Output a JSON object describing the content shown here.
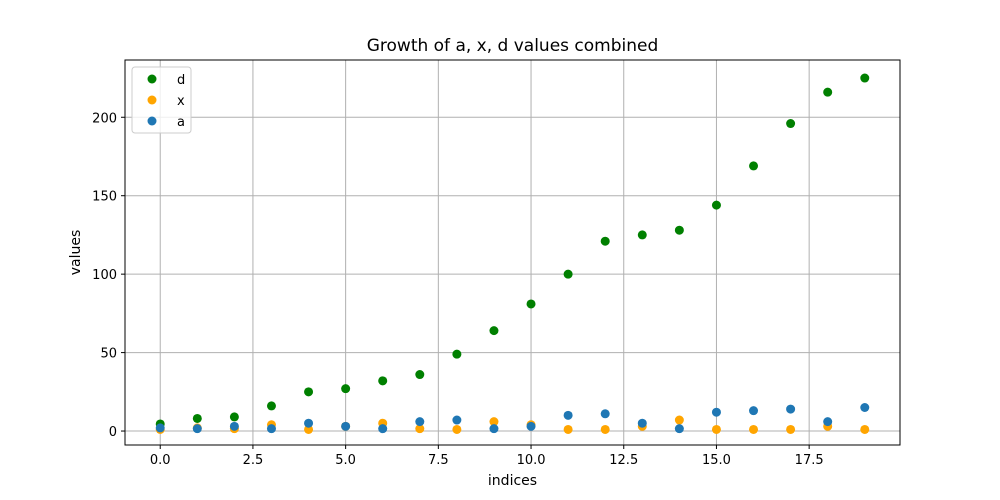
{
  "chart_data": {
    "type": "scatter",
    "title": "Growth of a, x, d values combined",
    "xlabel": "indices",
    "ylabel": "values",
    "xlim": [
      -0.95,
      19.95
    ],
    "ylim": [
      -8.9,
      236.5
    ],
    "xticks": [
      0.0,
      2.5,
      5.0,
      7.5,
      10.0,
      12.5,
      15.0,
      17.5
    ],
    "xtick_labels": [
      "0.0",
      "2.5",
      "5.0",
      "7.5",
      "10.0",
      "12.5",
      "15.0",
      "17.5"
    ],
    "yticks": [
      0,
      50,
      100,
      150,
      200
    ],
    "ytick_labels": [
      "0",
      "50",
      "100",
      "150",
      "200"
    ],
    "grid": true,
    "legend_position": "top-left",
    "x": [
      0,
      1,
      2,
      3,
      4,
      5,
      6,
      7,
      8,
      9,
      10,
      11,
      12,
      13,
      14,
      15,
      16,
      17,
      18,
      19
    ],
    "series": [
      {
        "name": "d",
        "color": "#008000",
        "values": [
          4.5,
          8,
          9,
          16,
          25,
          27,
          32,
          36,
          49,
          64,
          81,
          100,
          121,
          125,
          128,
          144,
          169,
          196,
          216,
          225
        ]
      },
      {
        "name": "x",
        "color": "#ffa500",
        "values": [
          1,
          2,
          1.5,
          4,
          1,
          3,
          5,
          1.5,
          1,
          6,
          4,
          1,
          1,
          3,
          7,
          1,
          1,
          1,
          3,
          1
        ]
      },
      {
        "name": "a",
        "color": "#1f77b4",
        "values": [
          2,
          1.5,
          3,
          1.5,
          5,
          3,
          1.5,
          6,
          7,
          1.5,
          3,
          10,
          11,
          5,
          1.5,
          12,
          13,
          14,
          6,
          15
        ]
      }
    ]
  }
}
